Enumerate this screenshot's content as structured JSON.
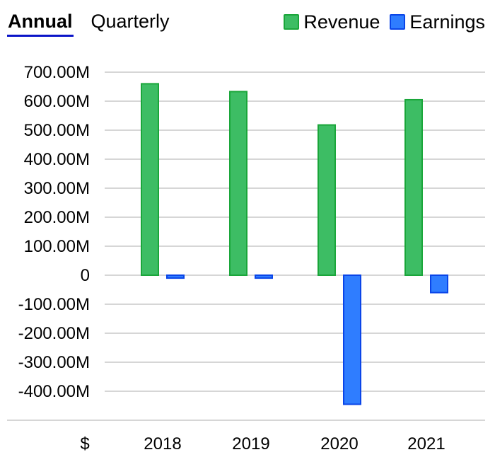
{
  "tabs": [
    {
      "label": "Annual",
      "active": true
    },
    {
      "label": "Quarterly",
      "active": false
    }
  ],
  "legend": [
    {
      "label": "Revenue",
      "fill": "#3dbd64",
      "stroke": "#1aa63a"
    },
    {
      "label": "Earnings",
      "fill": "#2f7dff",
      "stroke": "#0a45e8"
    }
  ],
  "currency_symbol": "$",
  "chart_data": {
    "type": "bar",
    "categories": [
      "2018",
      "2019",
      "2020",
      "2021"
    ],
    "series": [
      {
        "name": "Revenue",
        "values": [
          660,
          633,
          518,
          605
        ]
      },
      {
        "name": "Earnings",
        "values": [
          -10,
          -10,
          -445,
          -60
        ]
      }
    ],
    "units": "millions USD",
    "ylim": [
      -500,
      700
    ],
    "yticks": [
      700,
      600,
      500,
      400,
      300,
      200,
      100,
      0,
      -100,
      -200,
      -300,
      -400
    ],
    "ytick_labels": [
      "700.00M",
      "600.00M",
      "500.00M",
      "400.00M",
      "300.00M",
      "200.00M",
      "100.00M",
      "0",
      "-100.00M",
      "-200.00M",
      "-300.00M",
      "-400.00M"
    ],
    "grid": true,
    "legend_position": "top-right"
  }
}
